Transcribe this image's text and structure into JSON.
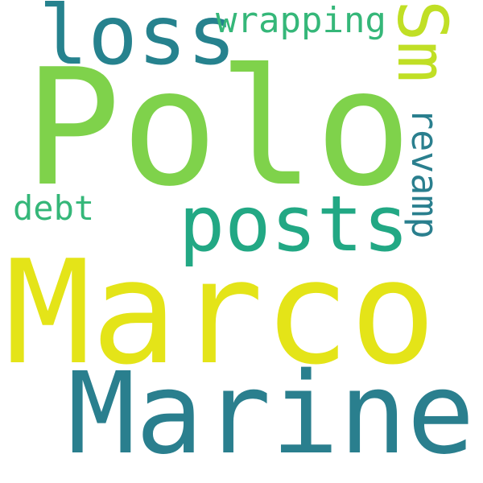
{
  "palette": {
    "background": "#ffffff",
    "lime": "#7fd24b",
    "yellow": "#e4e418",
    "teal_dark": "#2a7f8e",
    "teal": "#26828e",
    "green": "#22a884",
    "green_light": "#35b779",
    "yellow_green": "#c0df25"
  },
  "words": [
    {
      "text": "Marco",
      "color": "#e4e418"
    },
    {
      "text": "Polo",
      "color": "#7fd24b"
    },
    {
      "text": "Marine",
      "color": "#2a7f8e"
    },
    {
      "text": "posts",
      "color": "#22a884"
    },
    {
      "text": "loss",
      "color": "#26828e"
    },
    {
      "text": "wrapping",
      "color": "#35b779"
    },
    {
      "text": "Sm",
      "color": "#c0df25"
    },
    {
      "text": "revamp",
      "color": "#2a7f8e"
    },
    {
      "text": "debt",
      "color": "#35b779"
    }
  ]
}
